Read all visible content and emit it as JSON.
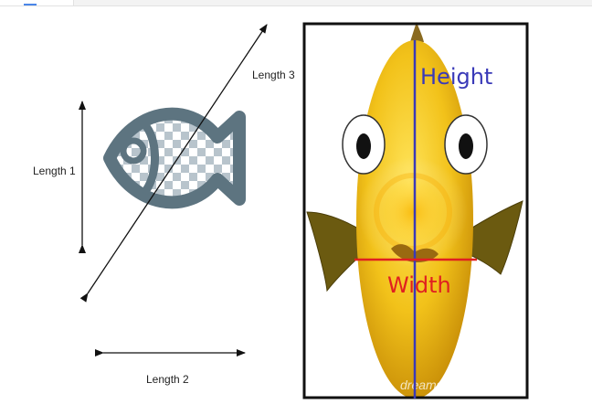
{
  "left_figure": {
    "length1_label": "Length 1",
    "length2_label": "Length 2",
    "length3_label": "Length 3"
  },
  "right_figure": {
    "height_label": "Height",
    "width_label": "Width",
    "watermark": "dreamstime.com"
  },
  "colors": {
    "fish_outline": "#5d7480",
    "checker_dark": "#b8c4cc",
    "height_line": "#3a3ab8",
    "width_line": "#e02020",
    "body_yellow": "#f2c21a"
  }
}
